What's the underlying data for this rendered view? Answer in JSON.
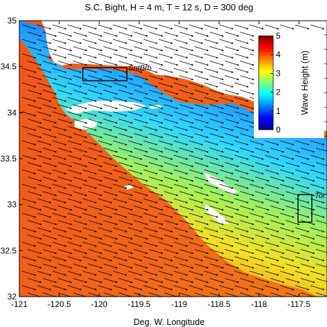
{
  "chart_data": {
    "type": "heatmap",
    "title": "S.C. Bight, H = 4 m, T = 12 s, D = 300 deg",
    "xlabel": "Deg. W. Longitude",
    "ylabel": "",
    "xlim": [
      -121,
      -117.15
    ],
    "ylim": [
      32,
      35
    ],
    "x_ticks": [
      -121,
      -120.5,
      -120,
      -119.5,
      -119,
      -118.5,
      -118,
      -117.5
    ],
    "y_ticks": [
      32,
      32.5,
      33,
      33.5,
      34,
      34.5,
      35
    ],
    "x_tick_labels": [
      "-121",
      "-120.5",
      "-120",
      "-119.5",
      "-119",
      "-118.5",
      "-118",
      "-117.5"
    ],
    "y_tick_labels": [
      "32",
      "32.5",
      "33",
      "33.5",
      "34",
      "34.5",
      "35"
    ],
    "grid": false,
    "colorbar": {
      "label": "Wave Height (m)",
      "range": [
        0,
        5
      ],
      "ticks": [
        0,
        1,
        2,
        3,
        4,
        5
      ],
      "tick_labels": [
        "0",
        "1",
        "2",
        "3",
        "4",
        "5"
      ],
      "colormap": "jet",
      "placement": "top-right-inset"
    },
    "vector_field": {
      "variable": "wave direction",
      "direction_deg": 300
    },
    "annotations": [
      {
        "text": "SntBrb",
        "x": -119.6,
        "y": 34.5
      },
      {
        "text": "Tor",
        "x": -117.3,
        "y": 33.02
      }
    ],
    "boxes": [
      {
        "name": "SntBrb",
        "x": [
          -120.1,
          -119.6
        ],
        "y": [
          34.36,
          34.48
        ]
      },
      {
        "name": "Tor",
        "x": [
          -117.35,
          -117.2
        ],
        "y": [
          32.81,
          33.04
        ]
      }
    ],
    "colors": {
      "offshore_field": "#f05a14",
      "land": "#ffffff",
      "frame": "#000000"
    }
  }
}
